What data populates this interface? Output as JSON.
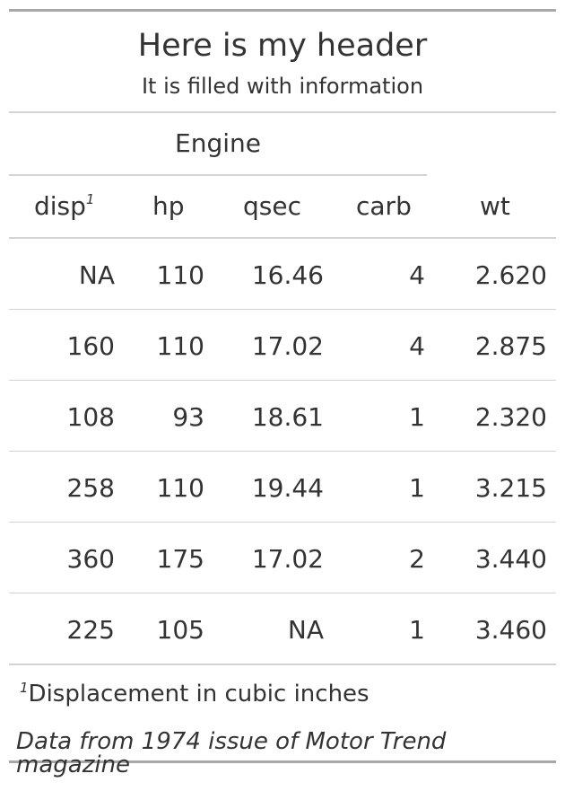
{
  "header": {
    "title": "Here is my header",
    "subtitle": "It is filled with information"
  },
  "spanner": {
    "label": "Engine"
  },
  "columns": {
    "disp": "disp",
    "disp_footnote_mark": "1",
    "hp": "hp",
    "qsec": "qsec",
    "carb": "carb",
    "wt": "wt"
  },
  "rows": [
    {
      "disp": "NA",
      "hp": "110",
      "qsec": "16.46",
      "carb": "4",
      "wt": "2.620"
    },
    {
      "disp": "160",
      "hp": "110",
      "qsec": "17.02",
      "carb": "4",
      "wt": "2.875"
    },
    {
      "disp": "108",
      "hp": "93",
      "qsec": "18.61",
      "carb": "1",
      "wt": "2.320"
    },
    {
      "disp": "258",
      "hp": "110",
      "qsec": "19.44",
      "carb": "1",
      "wt": "3.215"
    },
    {
      "disp": "360",
      "hp": "175",
      "qsec": "17.02",
      "carb": "2",
      "wt": "3.440"
    },
    {
      "disp": "225",
      "hp": "105",
      "qsec": "NA",
      "carb": "1",
      "wt": "3.460"
    }
  ],
  "footnote": {
    "mark": "1",
    "text": "Displacement in cubic inches"
  },
  "source_note": "Data from 1974 issue of Motor Trend magazine"
}
